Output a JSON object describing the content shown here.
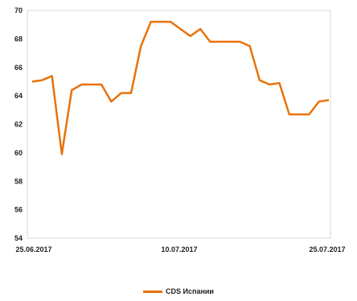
{
  "chart_data": {
    "type": "line",
    "title": "",
    "xlabel": "",
    "ylabel": "",
    "ylim": [
      54,
      70
    ],
    "yticks": [
      54,
      56,
      58,
      60,
      62,
      64,
      66,
      68,
      70
    ],
    "xtick_labels": [
      "25.06.2017",
      "10.07.2017",
      "25.07.2017"
    ],
    "grid": false,
    "legend_position": "bottom",
    "series": [
      {
        "name": "CDS Испании",
        "color": "#E8720C",
        "values": [
          65.0,
          65.1,
          65.4,
          59.9,
          64.4,
          64.8,
          64.8,
          64.8,
          63.6,
          64.2,
          64.2,
          67.5,
          69.2,
          69.2,
          69.2,
          68.7,
          68.2,
          68.7,
          67.8,
          67.8,
          67.8,
          67.8,
          67.5,
          65.1,
          64.8,
          64.9,
          62.7,
          62.7,
          62.7,
          63.6,
          63.7
        ]
      }
    ]
  }
}
